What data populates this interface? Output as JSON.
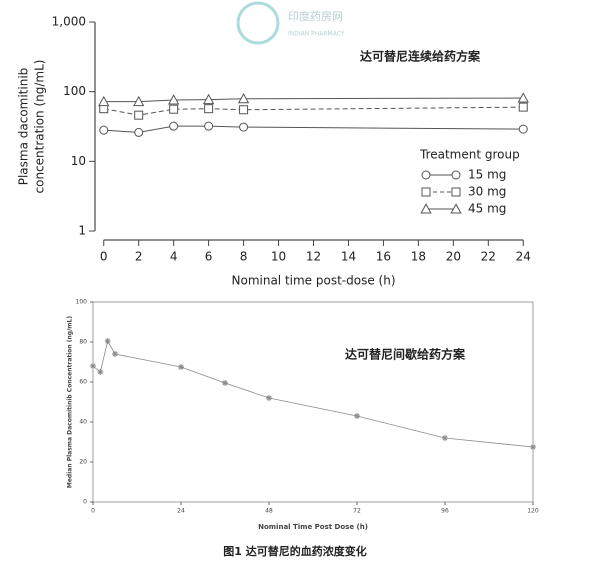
{
  "watermark": {
    "name": "印度药房网",
    "sub": "INDIAN PHARMACY"
  },
  "caption": "图1 达可替尼的血药浓度变化",
  "chart_data": [
    {
      "type": "line",
      "annotation": "达可替尼连续给药方案",
      "ylabel": [
        "Plasma dacomitinib",
        "concentration (ng/mL)"
      ],
      "xlabel": "Nominal time post-dose (h)",
      "legend_title": "Treatment group",
      "legend": "right",
      "log_y": true,
      "xlim": [
        -0.5,
        24.5
      ],
      "xticks": [
        0,
        2,
        4,
        6,
        8,
        10,
        12,
        14,
        16,
        18,
        20,
        22,
        24
      ],
      "ylim": [
        1,
        1000
      ],
      "yticks": [
        1,
        10,
        100,
        {
          "value": 1000,
          "label": "1,000"
        }
      ],
      "x": [
        0,
        2,
        4,
        6,
        8,
        24
      ],
      "series": [
        {
          "name": "15 mg",
          "color": "#555555",
          "marker": "circle",
          "line_style": "solid",
          "values": [
            28,
            26,
            32,
            32,
            31,
            29
          ]
        },
        {
          "name": "30 mg",
          "color": "#555555",
          "marker": "square",
          "line_style": "dashed",
          "values": [
            57,
            46,
            56,
            57,
            55,
            60
          ]
        },
        {
          "name": "45 mg",
          "color": "#555555",
          "marker": "triangle",
          "line_style": "solid",
          "values": [
            72,
            72,
            76,
            77,
            79,
            81
          ]
        }
      ]
    },
    {
      "type": "line",
      "annotation": "达可替尼间歇给药方案",
      "ylabel": [
        "Median Plasma Dacomitinib Concentration (ng/mL)"
      ],
      "xlabel": "Nominal Time Post Dose (h)",
      "log_y": false,
      "xlim": [
        0,
        120
      ],
      "xticks": [
        0,
        24,
        48,
        72,
        96,
        120
      ],
      "ylim": [
        0,
        100
      ],
      "yticks": [
        0,
        20,
        40,
        60,
        80,
        100
      ],
      "x": [
        0,
        2,
        4,
        6,
        24,
        36,
        48,
        72,
        96,
        120
      ],
      "series": [
        {
          "name": "Median",
          "color": "#8a8a8a",
          "marker": "star",
          "line_style": "solid",
          "values": [
            68,
            65,
            80.5,
            74,
            67.5,
            59.5,
            52,
            43,
            32,
            27.5
          ]
        }
      ]
    }
  ]
}
